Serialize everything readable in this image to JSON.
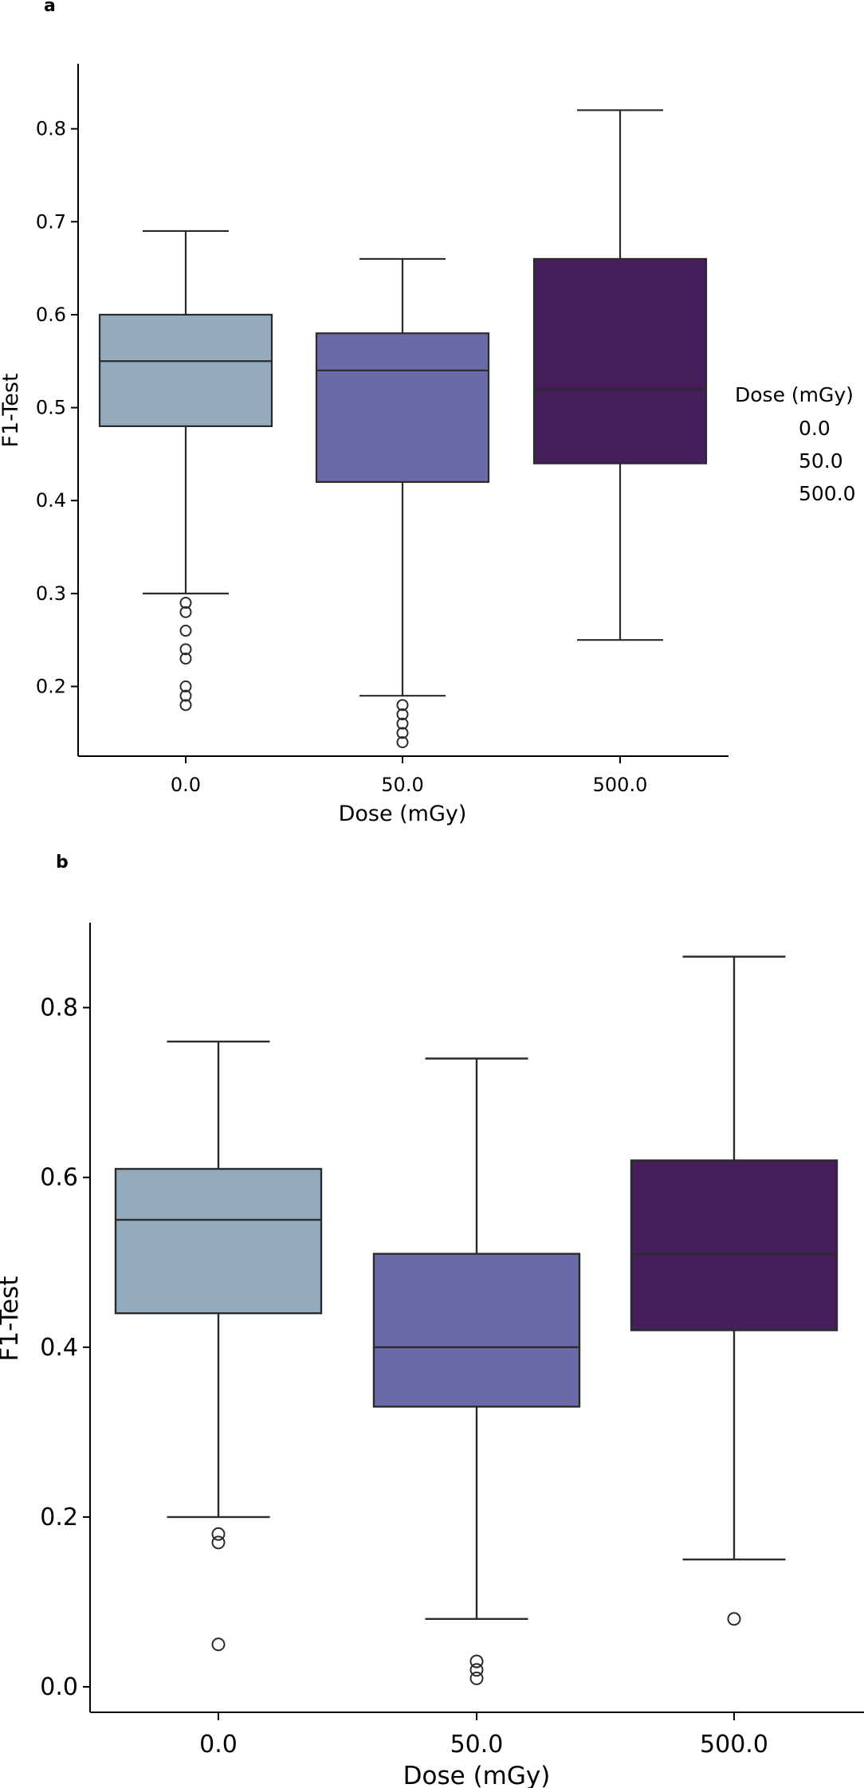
{
  "chart_data": [
    {
      "type": "box",
      "panel_label": "a",
      "xlabel": "Dose (mGy)",
      "ylabel": "F1-Test",
      "categories": [
        "0.0",
        "50.0",
        "500.0"
      ],
      "yticks": [
        "0.2",
        "0.3",
        "0.4",
        "0.5",
        "0.6",
        "0.7",
        "0.8"
      ],
      "ytick_values": [
        0.2,
        0.3,
        0.4,
        0.5,
        0.6,
        0.7,
        0.8
      ],
      "ylim": [
        0.125,
        0.87
      ],
      "colors": [
        "#93abbd",
        "#6b6aa8",
        "#461e5b"
      ],
      "boxes": [
        {
          "name": "0.0",
          "whisker_low": 0.3,
          "q1": 0.48,
          "median": 0.55,
          "q3": 0.6,
          "whisker_high": 0.69,
          "outliers": [
            0.29,
            0.28,
            0.26,
            0.24,
            0.23,
            0.2,
            0.19,
            0.18
          ]
        },
        {
          "name": "50.0",
          "whisker_low": 0.19,
          "q1": 0.42,
          "median": 0.54,
          "q3": 0.58,
          "whisker_high": 0.66,
          "outliers": [
            0.18,
            0.17,
            0.16,
            0.15,
            0.14
          ]
        },
        {
          "name": "500.0",
          "whisker_low": 0.25,
          "q1": 0.44,
          "median": 0.52,
          "q3": 0.66,
          "whisker_high": 0.82,
          "outliers": []
        }
      ],
      "legend": {
        "title": "Dose (mGy)",
        "entries": [
          "0.0",
          "50.0",
          "500.0"
        ],
        "position": "right"
      }
    },
    {
      "type": "box",
      "panel_label": "b",
      "xlabel": "Dose (mGy)",
      "ylabel": "F1-Test",
      "categories": [
        "0.0",
        "50.0",
        "500.0"
      ],
      "yticks": [
        "0.0",
        "0.2",
        "0.4",
        "0.6",
        "0.8"
      ],
      "ytick_values": [
        0.0,
        0.2,
        0.4,
        0.6,
        0.8
      ],
      "ylim": [
        -0.03,
        0.9
      ],
      "colors": [
        "#93abbd",
        "#6b6aa8",
        "#461e5b"
      ],
      "boxes": [
        {
          "name": "0.0",
          "whisker_low": 0.2,
          "q1": 0.44,
          "median": 0.55,
          "q3": 0.61,
          "whisker_high": 0.76,
          "outliers": [
            0.18,
            0.17,
            0.05
          ]
        },
        {
          "name": "50.0",
          "whisker_low": 0.08,
          "q1": 0.33,
          "median": 0.4,
          "q3": 0.51,
          "whisker_high": 0.74,
          "outliers": [
            0.03,
            0.02,
            0.01
          ]
        },
        {
          "name": "500.0",
          "whisker_low": 0.15,
          "q1": 0.42,
          "median": 0.51,
          "q3": 0.62,
          "whisker_high": 0.86,
          "outliers": [
            0.08
          ]
        }
      ]
    }
  ]
}
